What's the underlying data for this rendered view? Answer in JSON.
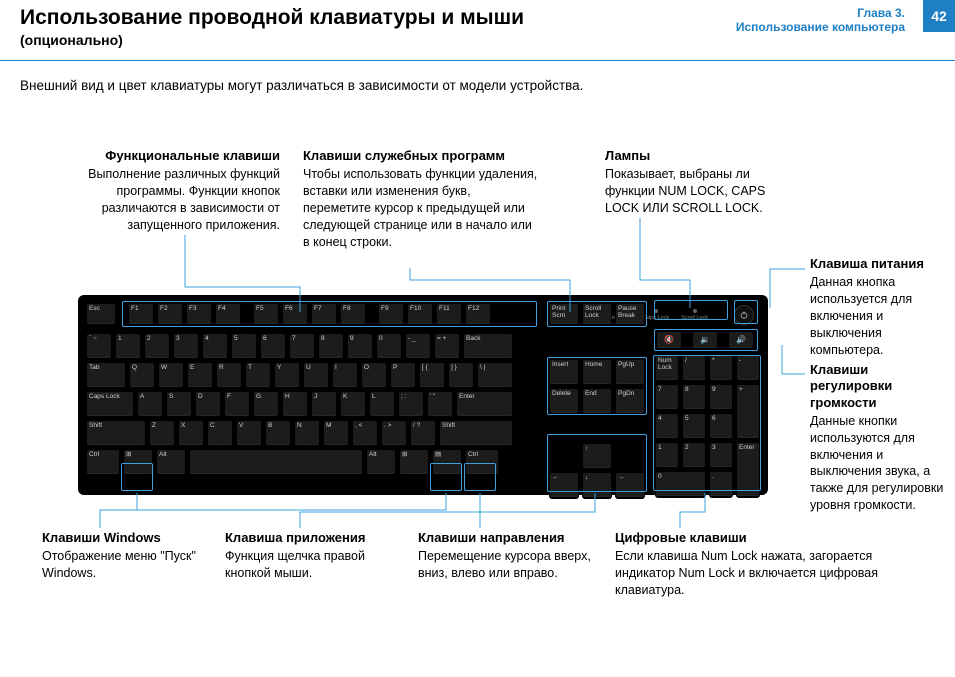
{
  "colors": {
    "accent": "#1e7fc4",
    "connector": "#3ea0e0",
    "page_bg": "#ffffff",
    "text": "#000000",
    "kb_body": "#000000",
    "key_bg": "#1c1c1c",
    "key_text": "#d0d0d0"
  },
  "header": {
    "title": "Использование проводной клавиатуры и мыши",
    "subtitle": "(опционально)",
    "chapter_label": "Глава 3.",
    "chapter_text": "Использование компьютера",
    "page_number": "42"
  },
  "intro": "Внешний вид и цвет клавиатуры могут различаться в зависимости от модели устройства.",
  "callouts": {
    "function_keys": {
      "title": "Функциональные клавиши",
      "desc": "Выполнение различных функций программы. Функции кнопок различаются в зависимости от запущенного приложения."
    },
    "utility_keys": {
      "title": "Клавиши служебных программ",
      "desc": "Чтобы использовать функции удаления, вставки или изменения букв, переметите курсор к предыдущей или следующей странице или в начало или в конец строки."
    },
    "lamps": {
      "title": "Лампы",
      "desc": "Показывает, выбраны ли функции NUM LOCK, CAPS LOCK ИЛИ SCROLL LOCK."
    },
    "power_key": {
      "title": "Клавиша питания",
      "desc": "Данная кнопка используется для включения и выключения компьютера."
    },
    "volume_keys": {
      "title": "Клавиши регулировки громкости",
      "desc": "Данные кнопки используются для включения и выключения звука, а также для регулировки уровня громкости."
    },
    "win_keys": {
      "title": "Клавиши Windows",
      "desc": "Отображение меню \"Пуск\" Windows."
    },
    "app_key": {
      "title": "Клавиша приложения",
      "desc": "Функция щелчка правой кнопкой мыши."
    },
    "arrow_keys": {
      "title": "Клавиши направления",
      "desc": "Перемещение курсора вверх, вниз, влево или вправо."
    },
    "num_keys": {
      "title": "Цифровые клавиши",
      "desc": "Если клавиша Num Lock нажата, загорается индикатор Num Lock и включается цифровая клавиатура."
    }
  },
  "keyboard": {
    "status_labels": [
      "Num Lock",
      "Caps Lock",
      "Scroll Lock"
    ],
    "volume_icons": [
      "🔇",
      "🔉",
      "🔊"
    ],
    "rows": {
      "fn": [
        [
          "Esc",
          30
        ],
        [
          "",
          6,
          "g"
        ],
        [
          "F1",
          26
        ],
        [
          "F2",
          26
        ],
        [
          "F3",
          26
        ],
        [
          "F4",
          26
        ],
        [
          "",
          6,
          "g"
        ],
        [
          "F5",
          26
        ],
        [
          "F6",
          26
        ],
        [
          "F7",
          26
        ],
        [
          "F8",
          26
        ],
        [
          "",
          6,
          "g"
        ],
        [
          "F9",
          26
        ],
        [
          "F10",
          26
        ],
        [
          "F11",
          26
        ],
        [
          "F12",
          26
        ]
      ],
      "r1": [
        [
          "` ~",
          26
        ],
        [
          "1",
          26
        ],
        [
          "2",
          26
        ],
        [
          "3",
          26
        ],
        [
          "4",
          26
        ],
        [
          "5",
          26
        ],
        [
          "6",
          26
        ],
        [
          "7",
          26
        ],
        [
          "8",
          26
        ],
        [
          "9",
          26
        ],
        [
          "0",
          26
        ],
        [
          "- _",
          26
        ],
        [
          "= +",
          26
        ],
        [
          "Back",
          50
        ]
      ],
      "r2": [
        [
          "Tab",
          40
        ],
        [
          "Q",
          26
        ],
        [
          "W",
          26
        ],
        [
          "E",
          26
        ],
        [
          "R",
          26
        ],
        [
          "T",
          26
        ],
        [
          "Y",
          26
        ],
        [
          "U",
          26
        ],
        [
          "I",
          26
        ],
        [
          "O",
          26
        ],
        [
          "P",
          26
        ],
        [
          "[ {",
          26
        ],
        [
          "] }",
          26
        ],
        [
          "\\ |",
          36
        ]
      ],
      "r3": [
        [
          "Caps Lock",
          48
        ],
        [
          "A",
          26
        ],
        [
          "S",
          26
        ],
        [
          "D",
          26
        ],
        [
          "F",
          26
        ],
        [
          "G",
          26
        ],
        [
          "H",
          26
        ],
        [
          "J",
          26
        ],
        [
          "K",
          26
        ],
        [
          "L",
          26
        ],
        [
          "; :",
          26
        ],
        [
          "' \"",
          26
        ],
        [
          "Enter",
          57
        ]
      ],
      "r4": [
        [
          "Shift",
          60
        ],
        [
          "Z",
          26
        ],
        [
          "X",
          26
        ],
        [
          "C",
          26
        ],
        [
          "V",
          26
        ],
        [
          "B",
          26
        ],
        [
          "N",
          26
        ],
        [
          "M",
          26
        ],
        [
          ", <",
          26
        ],
        [
          ". >",
          26
        ],
        [
          "/ ?",
          26
        ],
        [
          "Shift",
          74
        ]
      ],
      "r5": [
        [
          "Ctrl",
          34
        ],
        [
          "⊞",
          30
        ],
        [
          "Alt",
          30
        ],
        [
          "",
          174,
          "sp"
        ],
        [
          "Alt",
          30
        ],
        [
          "⊞",
          30
        ],
        [
          "▤",
          30
        ],
        [
          "Ctrl",
          34
        ]
      ],
      "nav_fn": [
        [
          "Print Scrn",
          30
        ],
        [
          "Scroll Lock",
          30
        ],
        [
          "Pause Break",
          30
        ]
      ],
      "nav1": [
        [
          "Insert",
          30
        ],
        [
          "Home",
          30
        ],
        [
          "PgUp",
          30
        ]
      ],
      "nav2": [
        [
          "Delete",
          30
        ],
        [
          "End",
          30
        ],
        [
          "PgDn",
          30
        ]
      ],
      "nav3": [
        [
          "",
          30,
          "b"
        ],
        [
          "↑",
          30
        ],
        [
          "",
          30,
          "b"
        ]
      ],
      "nav4": [
        [
          "←",
          30
        ],
        [
          "↓",
          30
        ],
        [
          "→",
          30
        ]
      ],
      "num1": [
        [
          "Num Lock",
          24
        ],
        [
          "/",
          24
        ],
        [
          "*",
          24
        ],
        [
          "-",
          24
        ]
      ],
      "num2": [
        [
          "7",
          24
        ],
        [
          "8",
          24
        ],
        [
          "9",
          24
        ],
        [
          "+",
          24,
          "tall"
        ]
      ],
      "num3": [
        [
          "4",
          24
        ],
        [
          "5",
          24
        ],
        [
          "6",
          24
        ]
      ],
      "num4": [
        [
          "1",
          24
        ],
        [
          "2",
          24
        ],
        [
          "3",
          24
        ],
        [
          "Enter",
          24,
          "tall"
        ]
      ],
      "num5": [
        [
          "0",
          51
        ],
        [
          ".",
          24
        ]
      ]
    }
  }
}
